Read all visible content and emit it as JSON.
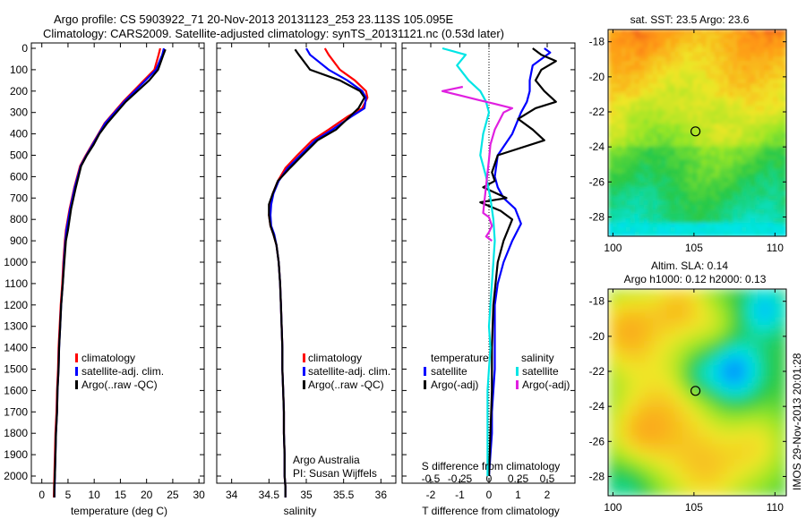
{
  "header": {
    "line1": "Argo profile: CS 5903922_71 20-Nov-2013 20131123_253 23.113S 105.095E",
    "line2": "Climatology: CARS2009. Satellite-adjusted climatology: synTS_20131121.nc (0.53d later)"
  },
  "side_stamp": "IMOS 29-Nov-2013 20:01:28",
  "colors": {
    "climatology": "#ff0000",
    "satellite": "#0000ff",
    "argo": "#000000",
    "sal_satellite": "#00e5e5",
    "sal_argo": "#e020e0"
  },
  "chart_data": [
    {
      "type": "line",
      "panel": "temperature",
      "xlabel": "temperature (deg C)",
      "ylabel": "",
      "xlim": [
        -2,
        31
      ],
      "ylim": [
        2100,
        0
      ],
      "xticks": [
        "0",
        "5",
        "10",
        "15",
        "20",
        "25",
        "30"
      ],
      "yticks": [
        "0",
        "100",
        "200",
        "300",
        "400",
        "500",
        "600",
        "700",
        "800",
        "900",
        "1000",
        "1100",
        "1200",
        "1300",
        "1400",
        "1500",
        "1600",
        "1700",
        "1800",
        "1900",
        "2000"
      ],
      "legend": [
        "climatology",
        "satellite-adj. clim.",
        "Argo(..raw -QC)"
      ],
      "series": [
        {
          "name": "climatology",
          "color": "#ff0000",
          "x": [
            22.6,
            22.3,
            21.5,
            19.5,
            15.5,
            12.0,
            10.8,
            9.6,
            8.4,
            7.3,
            6.2,
            5.3,
            4.6,
            4.4,
            4.1,
            3.9,
            3.6,
            3.4,
            3.2,
            3.1,
            2.9,
            2.8,
            2.6,
            2.5,
            2.4,
            2.35,
            2.3
          ],
          "y": [
            0,
            30,
            100,
            150,
            250,
            350,
            400,
            450,
            500,
            550,
            650,
            750,
            850,
            900,
            1000,
            1100,
            1200,
            1300,
            1400,
            1500,
            1600,
            1700,
            1800,
            1900,
            2000,
            2050,
            2100
          ]
        },
        {
          "name": "satellite-adj. clim.",
          "color": "#0000ff",
          "x": [
            23.3,
            23.0,
            21.8,
            19.8,
            15.7,
            12.1,
            10.9,
            9.7,
            8.5,
            7.4,
            6.3,
            5.4,
            4.7,
            4.5,
            4.2,
            4.0,
            3.7,
            3.5,
            3.3,
            3.2,
            3.0,
            2.9,
            2.7,
            2.6,
            2.5,
            2.45,
            2.4
          ],
          "y": [
            0,
            30,
            100,
            150,
            250,
            350,
            400,
            450,
            500,
            550,
            650,
            750,
            850,
            900,
            1000,
            1100,
            1200,
            1300,
            1400,
            1500,
            1600,
            1700,
            1800,
            1900,
            2000,
            2050,
            2100
          ]
        },
        {
          "name": "Argo(..raw -QC)",
          "color": "#000000",
          "x": [
            23.6,
            23.2,
            22.2,
            20.5,
            16.0,
            12.5,
            11.0,
            9.9,
            8.6,
            7.5,
            6.5,
            5.6,
            5.0,
            4.6,
            4.3,
            4.0,
            3.7,
            3.5,
            3.3,
            3.2,
            3.0,
            2.9,
            2.7,
            2.6,
            2.5,
            2.4,
            2.4
          ],
          "y": [
            5,
            30,
            100,
            150,
            250,
            350,
            400,
            450,
            500,
            550,
            650,
            750,
            850,
            900,
            1000,
            1100,
            1200,
            1300,
            1400,
            1500,
            1600,
            1700,
            1800,
            1900,
            2000,
            2050,
            2100
          ]
        }
      ]
    },
    {
      "type": "line",
      "panel": "salinity",
      "xlabel": "salinity",
      "xlim": [
        33.8,
        36.2
      ],
      "ylim": [
        2100,
        0
      ],
      "xticks": [
        "34",
        "34.5",
        "35",
        "35.5",
        "36"
      ],
      "legend": [
        "climatology",
        "satellite-adj. clim.",
        "Argo(..raw -QC)"
      ],
      "annotation": [
        "Argo Australia",
        "PI: Susan Wijffels"
      ],
      "series": [
        {
          "name": "climatology",
          "color": "#ff0000",
          "x": [
            35.25,
            35.3,
            35.45,
            35.65,
            35.8,
            35.82,
            35.75,
            35.55,
            35.3,
            35.08,
            34.88,
            34.72,
            34.62,
            34.55,
            34.52,
            34.5,
            34.52,
            34.56,
            34.6,
            34.63,
            34.65,
            34.66,
            34.67,
            34.68,
            34.68,
            34.69,
            34.7,
            34.7,
            34.71,
            34.71,
            34.72,
            34.72
          ],
          "y": [
            0,
            30,
            100,
            150,
            200,
            230,
            280,
            320,
            380,
            430,
            500,
            560,
            620,
            680,
            730,
            780,
            830,
            870,
            920,
            1000,
            1100,
            1200,
            1300,
            1400,
            1500,
            1600,
            1700,
            1800,
            1900,
            2000,
            2050,
            2100
          ]
        },
        {
          "name": "satellite-adj. clim.",
          "color": "#0000ff",
          "x": [
            35.0,
            35.05,
            35.3,
            35.55,
            35.75,
            35.8,
            35.78,
            35.6,
            35.35,
            35.12,
            34.92,
            34.75,
            34.63,
            34.56,
            34.53,
            34.52,
            34.53,
            34.57,
            34.6,
            34.63,
            34.65,
            34.66,
            34.67,
            34.68,
            34.68,
            34.69,
            34.7,
            34.7,
            34.71,
            34.71,
            34.72,
            34.72
          ],
          "y": [
            0,
            30,
            100,
            150,
            200,
            230,
            280,
            320,
            380,
            430,
            500,
            560,
            620,
            680,
            730,
            780,
            830,
            870,
            920,
            1000,
            1100,
            1200,
            1300,
            1400,
            1500,
            1600,
            1700,
            1800,
            1900,
            2000,
            2050,
            2100
          ]
        },
        {
          "name": "Argo(..raw -QC)",
          "color": "#000000",
          "x": [
            34.85,
            34.9,
            35.05,
            35.45,
            35.72,
            35.78,
            35.7,
            35.58,
            35.4,
            35.15,
            34.95,
            34.78,
            34.62,
            34.55,
            34.5,
            34.5,
            34.52,
            34.56,
            34.6,
            34.63,
            34.65,
            34.66,
            34.67,
            34.68,
            34.68,
            34.69,
            34.7,
            34.7,
            34.71,
            34.71,
            34.72,
            34.72
          ],
          "y": [
            5,
            30,
            100,
            150,
            200,
            230,
            280,
            320,
            380,
            430,
            500,
            560,
            620,
            680,
            730,
            780,
            830,
            870,
            920,
            1000,
            1100,
            1200,
            1300,
            1400,
            1500,
            1600,
            1700,
            1800,
            1900,
            2000,
            2050,
            2100
          ]
        }
      ]
    },
    {
      "type": "line",
      "panel": "difference",
      "xlabel": "T difference from climatology",
      "top_label": "S difference from climatology",
      "xlim": [
        -3,
        3
      ],
      "ylim": [
        2100,
        0
      ],
      "xticks": [
        "-2",
        "-1",
        "0",
        "1",
        "2"
      ],
      "sticks": [
        "-0.5",
        "-0.25",
        "0",
        "0.25",
        "0.5"
      ],
      "legend_titles": [
        "temperature",
        "salinity"
      ],
      "legend": [
        "satellite",
        "Argo(-adj)",
        "satellite",
        "Argo(-adj)"
      ],
      "series": [
        {
          "name": "satellite",
          "quantity": "temperature",
          "color": "#0000ff",
          "x": [
            1.9,
            2.1,
            1.5,
            1.4,
            1.4,
            1.3,
            1.1,
            0.8,
            0.3,
            0.2,
            0.3,
            0.5,
            0.9,
            1.1,
            0.8,
            0.5,
            0.3,
            0.2,
            0.2,
            0.2,
            0.15,
            0.1,
            0.1,
            0.05,
            0.0
          ],
          "y": [
            0,
            20,
            80,
            150,
            200,
            250,
            300,
            400,
            500,
            600,
            650,
            700,
            750,
            820,
            900,
            1000,
            1100,
            1200,
            1300,
            1500,
            1600,
            1700,
            1800,
            1900,
            2000
          ]
        },
        {
          "name": "Argo(-adj)",
          "quantity": "temperature",
          "color": "#000000",
          "x": [
            1.5,
            1.8,
            2.3,
            1.8,
            1.6,
            1.9,
            2.3,
            1.6,
            1.0,
            1.5,
            1.9,
            0.3,
            0.1,
            0.2,
            -0.2,
            0.6,
            -0.3,
            0.4,
            0.8,
            0.5,
            0.3,
            0.15,
            0.1,
            0.1,
            0.05,
            0.0
          ],
          "y": [
            0,
            30,
            60,
            100,
            150,
            200,
            250,
            280,
            330,
            380,
            430,
            500,
            580,
            620,
            650,
            700,
            720,
            760,
            800,
            900,
            1000,
            1200,
            1400,
            1600,
            1800,
            2000
          ]
        },
        {
          "name": "satellite",
          "quantity": "salinity",
          "color": "#00e5e5",
          "x": [
            -1.6,
            -0.8,
            -1.1,
            -0.7,
            -0.3,
            -0.1,
            0.0,
            -0.2,
            -0.3,
            -0.1,
            0.05,
            0.15,
            0.2,
            0.15,
            0.1,
            0.05,
            0.0,
            0.05,
            0.0,
            -0.05,
            -0.05,
            -0.05,
            -0.05
          ],
          "y": [
            0,
            30,
            80,
            150,
            200,
            250,
            300,
            400,
            500,
            600,
            700,
            800,
            900,
            1000,
            1100,
            1200,
            1300,
            1400,
            1500,
            1600,
            1800,
            1900,
            2000
          ]
        },
        {
          "name": "Argo(-adj)",
          "quantity": "salinity",
          "color": "#e020e0",
          "x": [
            -0.9,
            -1.6,
            -1.0,
            -0.4,
            0.2,
            0.8,
            0.5,
            0.2,
            0.05,
            0.0,
            -0.2,
            0.0,
            0.1,
            0.0,
            -0.1,
            0.1
          ],
          "y": [
            180,
            200,
            220,
            240,
            260,
            280,
            300,
            380,
            450,
            520,
            770,
            790,
            830,
            860,
            880,
            900
          ]
        }
      ]
    },
    {
      "type": "heatmap",
      "panel": "sst_map",
      "title": "sat. SST: 23.5  Argo: 23.6",
      "xticks": [
        "100",
        "105",
        "110"
      ],
      "yticks": [
        "-18",
        "-20",
        "-22",
        "-24",
        "-26",
        "-28"
      ],
      "xlim": [
        99.7,
        110.7
      ],
      "ylim": [
        -29.1,
        -17.3
      ],
      "marker": {
        "lon": 105.095,
        "lat": -23.113
      }
    },
    {
      "type": "heatmap",
      "panel": "sla_map",
      "title": "Altim. SLA: 0.14",
      "subtitle": "Argo h1000: 0.12 h2000: 0.13",
      "xticks": [
        "100",
        "105",
        "110"
      ],
      "yticks": [
        "-18",
        "-20",
        "-22",
        "-24",
        "-26",
        "-28"
      ],
      "xlim": [
        99.7,
        110.7
      ],
      "ylim": [
        -29.1,
        -17.3
      ],
      "marker": {
        "lon": 105.095,
        "lat": -23.113
      }
    }
  ]
}
